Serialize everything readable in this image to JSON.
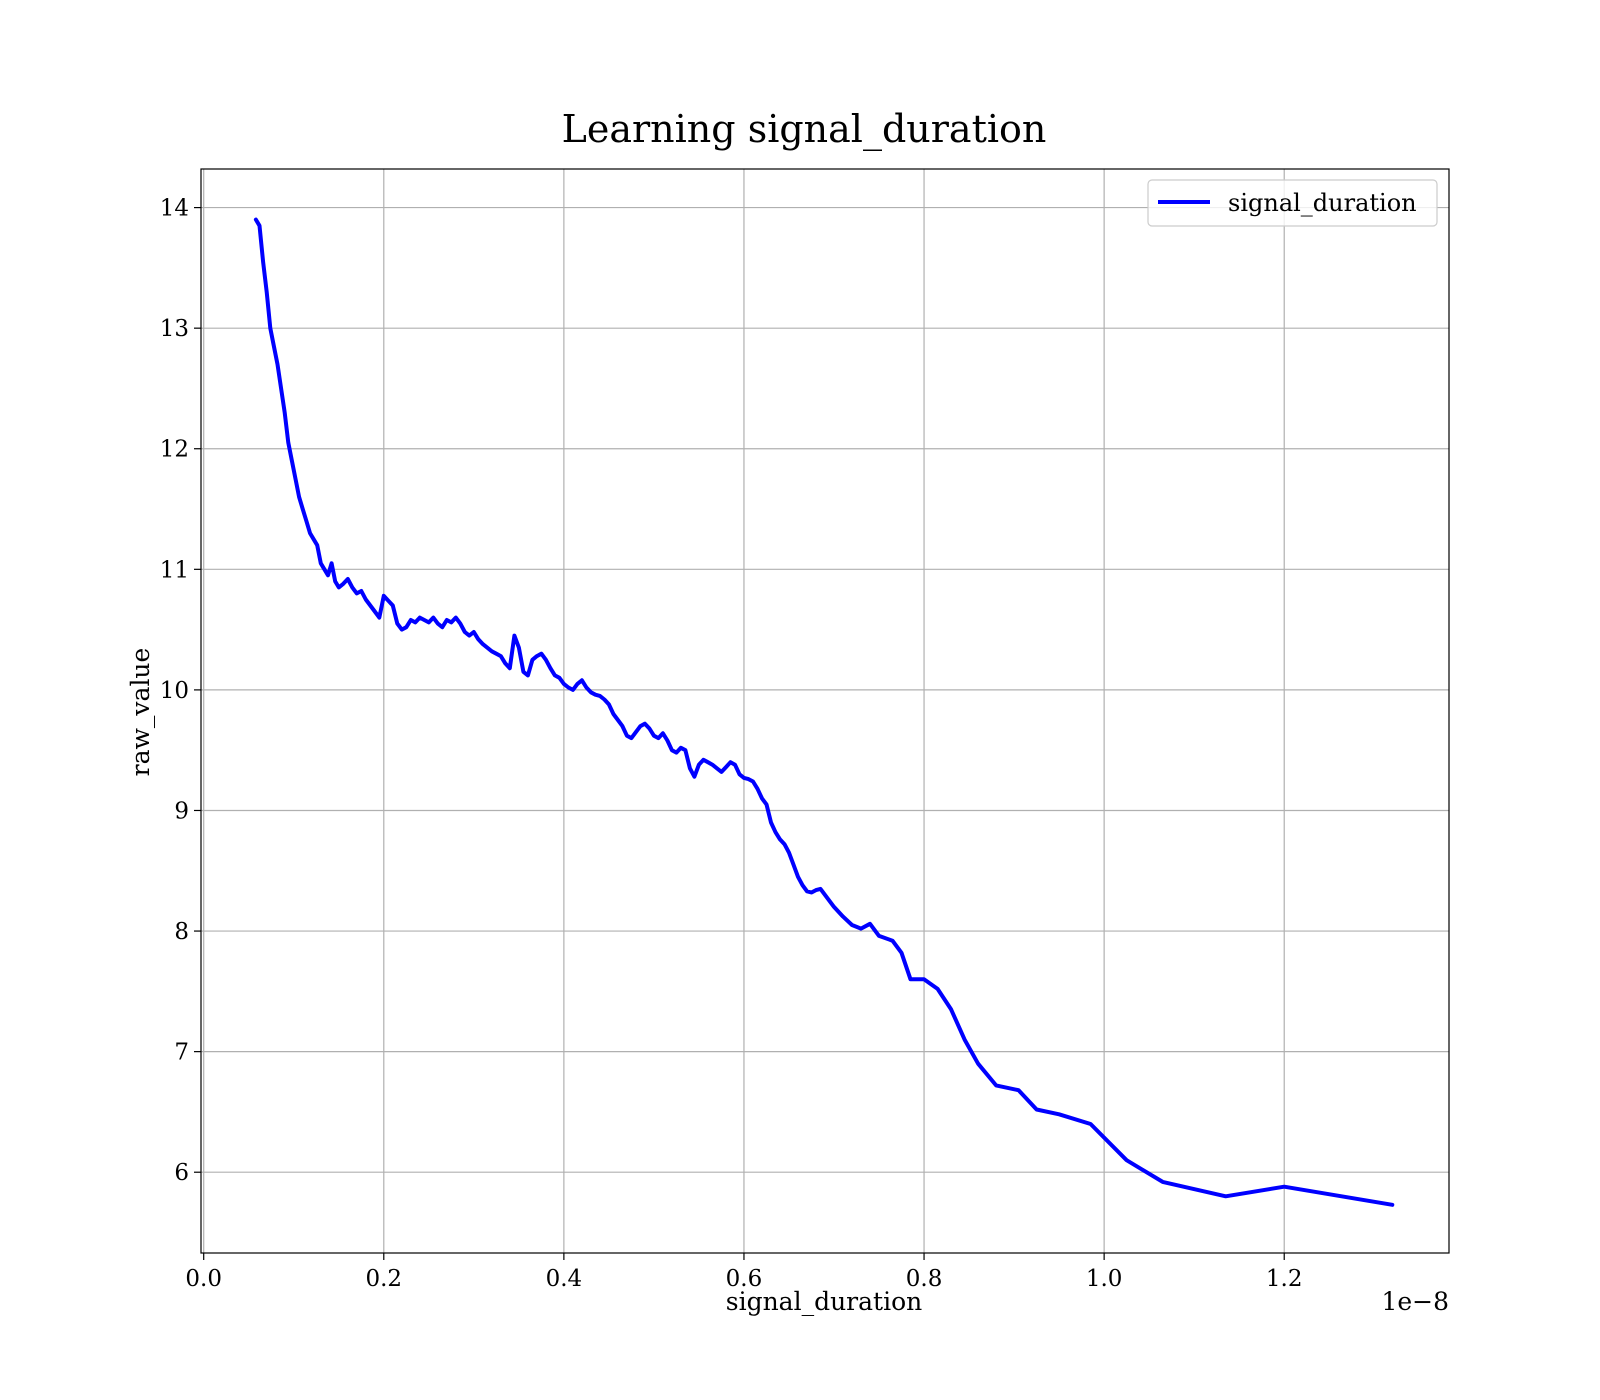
{
  "chart_data": {
    "type": "line",
    "title": "Learning signal_duration",
    "xlabel": "signal_duration",
    "ylabel": "raw_value",
    "x_scale_label": "1e−8",
    "xlim": [
      -0.003,
      1.383
    ],
    "ylim": [
      5.33,
      14.32
    ],
    "x_ticks": [
      0.0,
      0.2,
      0.4,
      0.6,
      0.8,
      1.0,
      1.2
    ],
    "x_tick_labels": [
      "0.0",
      "0.2",
      "0.4",
      "0.6",
      "0.8",
      "1.0",
      "1.2"
    ],
    "y_ticks": [
      6,
      7,
      8,
      9,
      10,
      11,
      12,
      13,
      14
    ],
    "y_tick_labels": [
      "6",
      "7",
      "8",
      "9",
      "10",
      "11",
      "12",
      "13",
      "14"
    ],
    "grid": true,
    "legend_position": "upper right",
    "series": [
      {
        "name": "signal_duration",
        "color": "#0000ff",
        "x": [
          0.058,
          0.062,
          0.066,
          0.07,
          0.074,
          0.078,
          0.082,
          0.086,
          0.09,
          0.094,
          0.098,
          0.102,
          0.106,
          0.11,
          0.114,
          0.118,
          0.122,
          0.126,
          0.13,
          0.134,
          0.138,
          0.142,
          0.146,
          0.15,
          0.155,
          0.16,
          0.165,
          0.17,
          0.175,
          0.18,
          0.185,
          0.19,
          0.195,
          0.2,
          0.205,
          0.21,
          0.215,
          0.22,
          0.225,
          0.23,
          0.235,
          0.24,
          0.245,
          0.25,
          0.255,
          0.26,
          0.265,
          0.27,
          0.275,
          0.28,
          0.285,
          0.29,
          0.295,
          0.3,
          0.305,
          0.31,
          0.315,
          0.32,
          0.325,
          0.33,
          0.335,
          0.34,
          0.345,
          0.35,
          0.355,
          0.36,
          0.365,
          0.37,
          0.375,
          0.38,
          0.385,
          0.39,
          0.395,
          0.4,
          0.405,
          0.41,
          0.415,
          0.42,
          0.425,
          0.43,
          0.435,
          0.44,
          0.445,
          0.45,
          0.455,
          0.46,
          0.465,
          0.47,
          0.475,
          0.48,
          0.485,
          0.49,
          0.495,
          0.5,
          0.505,
          0.51,
          0.515,
          0.52,
          0.525,
          0.53,
          0.535,
          0.54,
          0.545,
          0.55,
          0.555,
          0.56,
          0.565,
          0.57,
          0.575,
          0.58,
          0.585,
          0.59,
          0.595,
          0.6,
          0.605,
          0.61,
          0.615,
          0.62,
          0.625,
          0.63,
          0.635,
          0.64,
          0.645,
          0.65,
          0.655,
          0.66,
          0.665,
          0.67,
          0.675,
          0.68,
          0.685,
          0.69,
          0.7,
          0.71,
          0.72,
          0.73,
          0.74,
          0.75,
          0.765,
          0.775,
          0.785,
          0.8,
          0.815,
          0.83,
          0.845,
          0.86,
          0.88,
          0.905,
          0.925,
          0.95,
          0.985,
          1.025,
          1.065,
          1.135,
          1.2,
          1.32
        ],
        "y": [
          13.9,
          13.85,
          13.55,
          13.3,
          13.0,
          12.85,
          12.7,
          12.5,
          12.3,
          12.05,
          11.9,
          11.75,
          11.6,
          11.5,
          11.4,
          11.3,
          11.25,
          11.2,
          11.05,
          11.0,
          10.95,
          11.05,
          10.9,
          10.85,
          10.88,
          10.92,
          10.85,
          10.8,
          10.82,
          10.75,
          10.7,
          10.65,
          10.6,
          10.78,
          10.74,
          10.7,
          10.55,
          10.5,
          10.52,
          10.58,
          10.56,
          10.6,
          10.58,
          10.56,
          10.6,
          10.55,
          10.52,
          10.58,
          10.56,
          10.6,
          10.55,
          10.48,
          10.45,
          10.48,
          10.42,
          10.38,
          10.35,
          10.32,
          10.3,
          10.28,
          10.22,
          10.18,
          10.45,
          10.35,
          10.15,
          10.12,
          10.25,
          10.28,
          10.3,
          10.25,
          10.18,
          10.12,
          10.1,
          10.05,
          10.02,
          10.0,
          10.05,
          10.08,
          10.02,
          9.98,
          9.96,
          9.95,
          9.92,
          9.88,
          9.8,
          9.75,
          9.7,
          9.62,
          9.6,
          9.65,
          9.7,
          9.72,
          9.68,
          9.62,
          9.6,
          9.64,
          9.58,
          9.5,
          9.48,
          9.52,
          9.5,
          9.35,
          9.28,
          9.38,
          9.42,
          9.4,
          9.38,
          9.35,
          9.32,
          9.36,
          9.4,
          9.38,
          9.3,
          9.27,
          9.26,
          9.24,
          9.18,
          9.1,
          9.05,
          8.9,
          8.82,
          8.76,
          8.72,
          8.65,
          8.55,
          8.45,
          8.38,
          8.33,
          8.32,
          8.34,
          8.35,
          8.3,
          8.2,
          8.12,
          8.05,
          8.02,
          8.06,
          7.96,
          7.92,
          7.82,
          7.6,
          7.6,
          7.52,
          7.35,
          7.1,
          6.9,
          6.72,
          6.68,
          6.52,
          6.48,
          6.4,
          6.1,
          5.92,
          5.8,
          5.88,
          5.73
        ]
      }
    ]
  }
}
